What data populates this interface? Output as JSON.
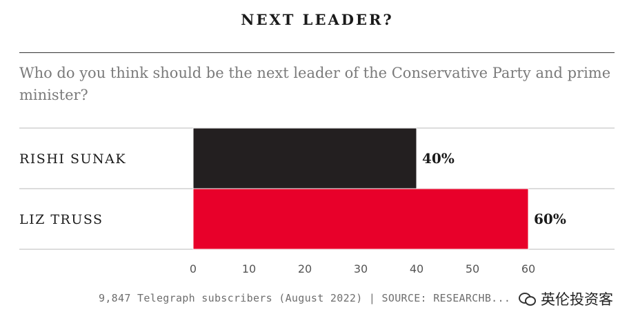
{
  "header": {
    "title": "NEXT LEADER?",
    "question": "Who do you think should be the next leader of the Conservative Party and prime minister?"
  },
  "footer": {
    "source": "9,847 Telegraph subscribers (August 2022) | SOURCE: RESEARCHB..."
  },
  "watermark": {
    "text": "英伦投资客",
    "icon": "wechat-icon"
  },
  "chart_data": {
    "type": "bar",
    "orientation": "horizontal",
    "categories": [
      "RISHI SUNAK",
      "LIZ TRUSS"
    ],
    "values": [
      40,
      60
    ],
    "value_labels": [
      "40%",
      "60%"
    ],
    "colors": [
      "#231f20",
      "#e8002a"
    ],
    "xlim": [
      0,
      60
    ],
    "xticks": [
      0,
      10,
      20,
      30,
      40,
      50,
      60
    ],
    "title": "NEXT LEADER?",
    "xlabel": "",
    "ylabel": "",
    "grid": false
  }
}
